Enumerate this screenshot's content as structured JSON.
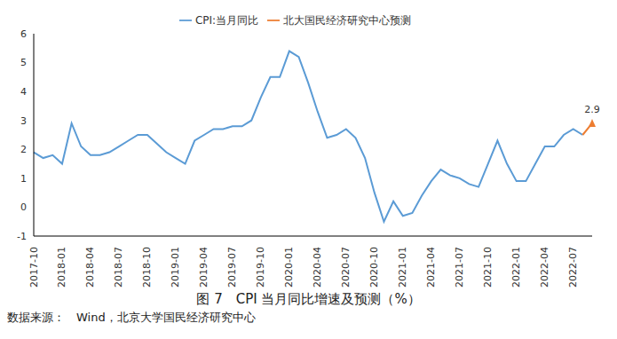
{
  "chart_data": {
    "type": "line",
    "title": "图 7　CPI 当月同比增速及预测（%）",
    "source": "数据来源：　Wind，北京大学国民经济研究中心",
    "categories": [
      "2017-10",
      null,
      null,
      "2018-01",
      null,
      null,
      "2018-04",
      null,
      null,
      "2018-07",
      null,
      null,
      "2018-10",
      null,
      null,
      "2019-01",
      null,
      null,
      "2019-04",
      null,
      null,
      "2019-07",
      null,
      null,
      "2019-10",
      null,
      null,
      "2020-01",
      null,
      null,
      "2020-04",
      null,
      null,
      "2020-07",
      null,
      null,
      "2020-10",
      null,
      null,
      "2021-01",
      null,
      null,
      "2021-04",
      null,
      null,
      "2021-07",
      null,
      null,
      "2021-10",
      null,
      null,
      "2022-01",
      null,
      null,
      "2022-04",
      null,
      null,
      "2022-07",
      null,
      null
    ],
    "series": [
      {
        "name": "CPI:当月同比",
        "color": "#5b9bd5",
        "marker": "none",
        "values": [
          1.9,
          1.7,
          1.8,
          1.5,
          2.9,
          2.1,
          1.8,
          1.8,
          1.9,
          2.1,
          2.3,
          2.5,
          2.5,
          2.2,
          1.9,
          1.7,
          1.5,
          2.3,
          2.5,
          2.7,
          2.7,
          2.8,
          2.8,
          3.0,
          3.8,
          4.5,
          4.5,
          5.4,
          5.2,
          4.3,
          3.3,
          2.4,
          2.5,
          2.7,
          2.4,
          1.7,
          0.5,
          -0.5,
          0.2,
          -0.3,
          -0.2,
          0.4,
          0.9,
          1.3,
          1.1,
          1.0,
          0.8,
          0.7,
          1.5,
          2.3,
          1.5,
          0.9,
          0.9,
          1.5,
          2.1,
          2.1,
          2.5,
          2.7,
          2.5,
          null
        ]
      },
      {
        "name": "北大国民经济研究中心预测",
        "color": "#ed7d31",
        "marker": "triangle",
        "data_labels": true,
        "values": [
          null,
          null,
          null,
          null,
          null,
          null,
          null,
          null,
          null,
          null,
          null,
          null,
          null,
          null,
          null,
          null,
          null,
          null,
          null,
          null,
          null,
          null,
          null,
          null,
          null,
          null,
          null,
          null,
          null,
          null,
          null,
          null,
          null,
          null,
          null,
          null,
          null,
          null,
          null,
          null,
          null,
          null,
          null,
          null,
          null,
          null,
          null,
          null,
          null,
          null,
          null,
          null,
          null,
          null,
          null,
          null,
          null,
          null,
          2.5,
          2.9
        ],
        "value_labels": [
          null,
          null,
          null,
          null,
          null,
          null,
          null,
          null,
          null,
          null,
          null,
          null,
          null,
          null,
          null,
          null,
          null,
          null,
          null,
          null,
          null,
          null,
          null,
          null,
          null,
          null,
          null,
          null,
          null,
          null,
          null,
          null,
          null,
          null,
          null,
          null,
          null,
          null,
          null,
          null,
          null,
          null,
          null,
          null,
          null,
          null,
          null,
          null,
          null,
          null,
          null,
          null,
          null,
          null,
          null,
          null,
          null,
          null,
          null,
          "2.9"
        ]
      }
    ],
    "ylim": [
      -1,
      6
    ],
    "yticks": [
      -1,
      0,
      1,
      2,
      3,
      4,
      5,
      6
    ],
    "grid": false,
    "legend": "top"
  }
}
